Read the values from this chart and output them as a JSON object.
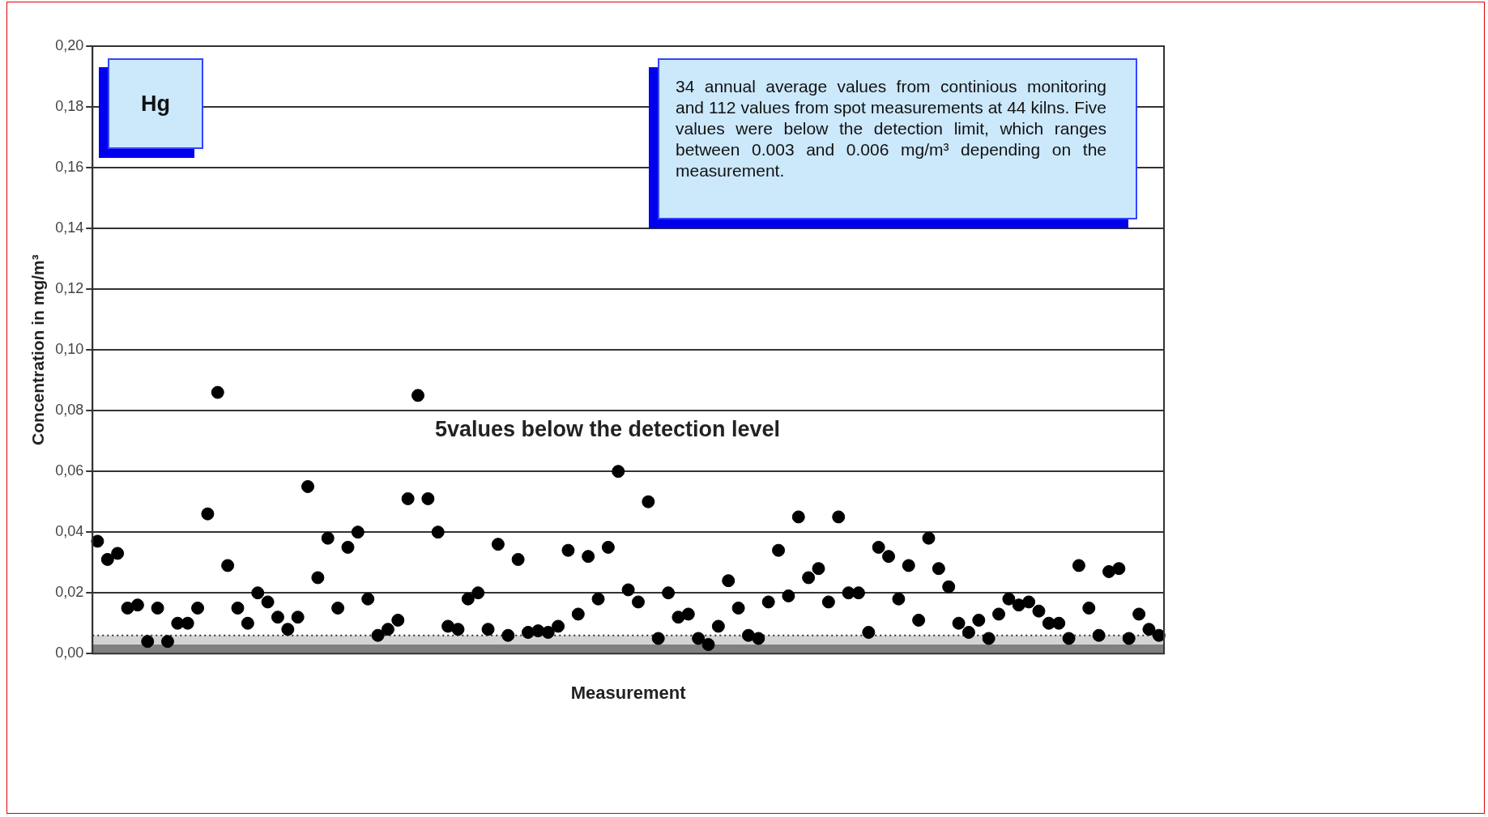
{
  "chart_data": {
    "type": "scatter",
    "xlabel": "Measurement",
    "ylabel": "Concentration in mg/m³",
    "annotations": [
      "Hg",
      "34 annual average values from continious monitoring and 112 values from spot measurements at 44 kilns. Five values were below the detection limit, which ranges between 0.003 and 0.006 mg/m³ depending on the measurement.",
      "5values below the detection level"
    ],
    "categories": [
      null,
      null,
      null,
      null,
      null,
      null,
      null,
      null,
      null,
      null,
      null,
      null,
      null,
      null,
      null,
      null,
      null,
      null,
      null,
      null,
      null,
      null,
      null,
      null,
      null,
      null,
      null,
      null,
      null,
      null,
      null,
      null,
      null,
      null,
      null,
      null,
      null,
      null,
      null,
      null,
      null,
      null,
      null,
      null,
      null,
      null,
      null,
      null,
      null,
      null,
      null,
      null,
      null,
      null,
      null,
      null,
      null,
      null,
      null,
      null,
      null,
      null,
      null,
      null,
      null,
      null,
      null,
      null,
      null,
      null,
      null,
      null,
      null,
      null,
      null,
      null,
      null,
      null,
      null,
      null,
      null,
      null,
      null,
      null,
      null,
      null,
      null,
      null,
      null,
      null,
      null,
      null,
      null,
      null,
      null,
      null,
      null,
      null,
      null,
      null,
      null,
      null,
      null,
      null,
      null,
      null,
      null
    ],
    "series": [
      {
        "color": "#000000",
        "values": [
          0.037,
          0.031,
          0.033,
          0.015,
          0.016,
          0.004,
          0.015,
          0.004,
          0.01,
          0.01,
          0.015,
          0.046,
          0.086,
          0.029,
          0.015,
          0.01,
          0.02,
          0.017,
          0.012,
          0.008,
          0.012,
          0.055,
          0.025,
          0.038,
          0.015,
          0.035,
          0.04,
          0.018,
          0.006,
          0.008,
          0.011,
          0.051,
          0.085,
          0.051,
          0.04,
          0.009,
          0.008,
          0.018,
          0.02,
          0.008,
          0.036,
          0.006,
          0.031,
          0.007,
          0.0075,
          0.007,
          0.009,
          0.034,
          0.013,
          0.032,
          0.018,
          0.035,
          0.06,
          0.021,
          0.017,
          0.05,
          0.005,
          0.02,
          0.012,
          0.013,
          0.005,
          0.003,
          0.009,
          0.024,
          0.015,
          0.006,
          0.005,
          0.017,
          0.034,
          0.019,
          0.045,
          0.025,
          0.028,
          0.017,
          0.045,
          0.02,
          0.02,
          0.007,
          0.035,
          0.032,
          0.018,
          0.029,
          0.011,
          0.038,
          0.028,
          0.022,
          0.01,
          0.007,
          0.011,
          0.005,
          0.013,
          0.018,
          0.016,
          0.017,
          0.014,
          0.01,
          0.01,
          0.005,
          0.029,
          0.015,
          0.006,
          0.027,
          0.028,
          0.005,
          0.013,
          0.008,
          0.006
        ]
      }
    ],
    "ylim": [
      0,
      0.2
    ],
    "yticks": [
      {
        "value": 0,
        "label": "0,00"
      },
      {
        "value": 0.02,
        "label": "0,02"
      },
      {
        "value": 0.04,
        "label": "0,04"
      },
      {
        "value": 0.06,
        "label": "0,06"
      },
      {
        "value": 0.08,
        "label": "0,08"
      },
      {
        "value": 0.1,
        "label": "0,10"
      },
      {
        "value": 0.12,
        "label": "0,12"
      },
      {
        "value": 0.14,
        "label": "0,14"
      },
      {
        "value": 0.16,
        "label": "0,16"
      },
      {
        "value": 0.18,
        "label": "0,18"
      },
      {
        "value": 0.2,
        "label": "0,20"
      }
    ],
    "bands": [
      {
        "axis": "y",
        "from": 0,
        "to": 0.003,
        "color": "#808080"
      },
      {
        "axis": "y",
        "from": 0.003,
        "to": 0.006,
        "color": "#d4d4d4"
      }
    ],
    "ref_lines": [
      {
        "axis": "y",
        "value": 0.006,
        "line_style": "dotted",
        "color": "#333333"
      }
    ],
    "grid": "y",
    "legend": false,
    "marker": "circle"
  }
}
